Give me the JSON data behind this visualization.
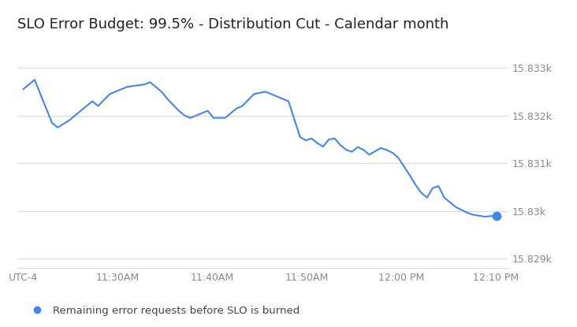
{
  "title": "SLO Error Budget: 99.5% - Distribution Cut - Calendar month",
  "title_fontsize": 13,
  "line_color": "#4285f4",
  "background_color": "#ffffff",
  "grid_color": "#dadada",
  "ytick_labels": [
    "15.829k",
    "15.83k",
    "15.831k",
    "15.832k",
    "15.833k"
  ],
  "ytick_vals": [
    15829,
    15830,
    15831,
    15832,
    15833
  ],
  "legend_label": "Remaining error requests before SLO is burned",
  "legend_color": "#4285f4",
  "xtick_labels": [
    "UTC-4",
    "11:30AM",
    "11:40AM",
    "11:50AM",
    "12:00 PM",
    "12:10 PM"
  ],
  "ylim_low": 15828.8,
  "ylim_high": 15833.6,
  "x_values": [
    0,
    2,
    3,
    5,
    6,
    8,
    10,
    12,
    13,
    15,
    16,
    18,
    19,
    21,
    22,
    24,
    25,
    27,
    28,
    29,
    31,
    32,
    33,
    35,
    36,
    37,
    38,
    40,
    42,
    43,
    44,
    45,
    46,
    48,
    49,
    50,
    51,
    52,
    53,
    54,
    55,
    56,
    57,
    58,
    59,
    60,
    61,
    62,
    63,
    64,
    65,
    67,
    68,
    69,
    70,
    71,
    72,
    73,
    74,
    75,
    76,
    77,
    78,
    80,
    82
  ],
  "y_values": [
    15832.55,
    15832.75,
    15832.45,
    15831.85,
    15831.75,
    15831.9,
    15832.1,
    15832.3,
    15832.2,
    15832.45,
    15832.5,
    15832.6,
    15832.62,
    15832.65,
    15832.7,
    15832.5,
    15832.35,
    15832.1,
    15832.0,
    15831.95,
    15832.05,
    15832.1,
    15831.95,
    15831.95,
    15832.05,
    15832.15,
    15832.2,
    15832.45,
    15832.5,
    15832.45,
    15832.4,
    15832.35,
    15832.3,
    15831.55,
    15831.48,
    15831.52,
    15831.42,
    15831.35,
    15831.5,
    15831.52,
    15831.38,
    15831.28,
    15831.24,
    15831.34,
    15831.28,
    15831.18,
    15831.25,
    15831.32,
    15831.28,
    15831.22,
    15831.12,
    15830.75,
    15830.55,
    15830.38,
    15830.28,
    15830.48,
    15830.52,
    15830.28,
    15830.18,
    15830.08,
    15830.02,
    15829.96,
    15829.92,
    15829.88,
    15829.9
  ]
}
